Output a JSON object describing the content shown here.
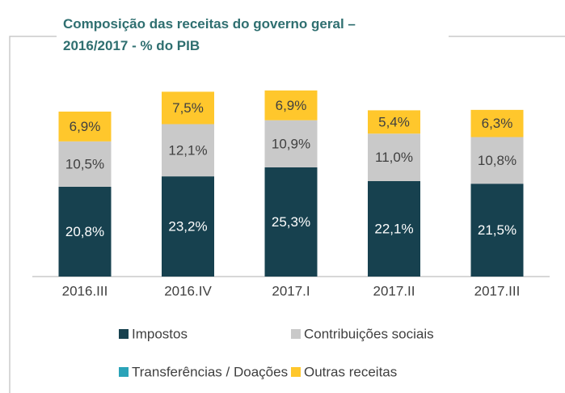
{
  "chart_data": {
    "type": "stacked_bar",
    "title": "Composição das receitas do governo geral – 2016/2017 - % do PIB",
    "categories": [
      "2016.III",
      "2016.IV",
      "2017.I",
      "2017.II",
      "2017.III"
    ],
    "series": [
      {
        "name": "Impostos",
        "color": "#17414f",
        "values": [
          20.8,
          23.2,
          25.3,
          22.1,
          21.5
        ],
        "value_labels": [
          "20,8%",
          "23,2%",
          "25,3%",
          "22,1%",
          "21,5%"
        ]
      },
      {
        "name": "Contribuições sociais",
        "color": "#c9c9c9",
        "values": [
          10.5,
          12.1,
          10.9,
          11.0,
          10.8
        ],
        "value_labels": [
          "10,5%",
          "12,1%",
          "10,9%",
          "11,0%",
          "10,8%"
        ]
      },
      {
        "name": "Transferências / Doações",
        "color": "#2aa3b8",
        "values": [
          null,
          null,
          null,
          null,
          null
        ]
      },
      {
        "name": "Outras receitas",
        "color": "#ffc72c",
        "values": [
          6.9,
          7.5,
          6.9,
          5.4,
          6.3
        ],
        "value_labels": [
          "6,9%",
          "7,5%",
          "6,9%",
          "5,4%",
          "6,3%"
        ]
      }
    ]
  }
}
